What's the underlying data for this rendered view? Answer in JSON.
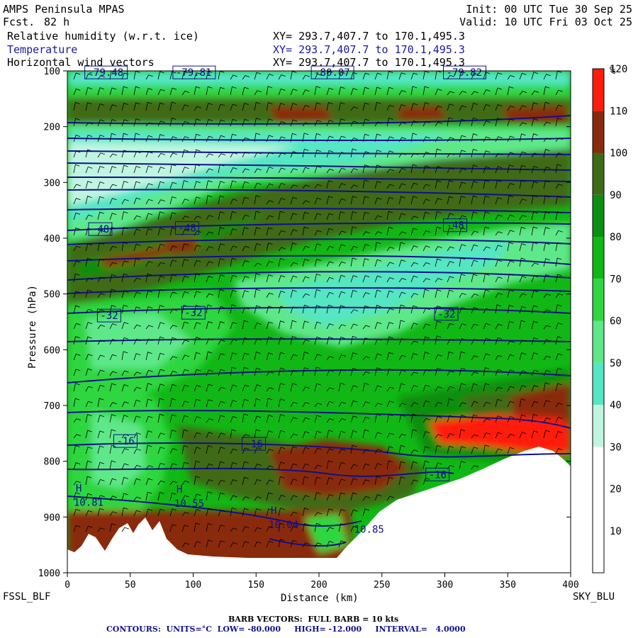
{
  "header": {
    "model": "AMPS Peninsula MPAS",
    "fcst_label": "Fcst.",
    "fcst_value": "82 h",
    "init": "Init: 00 UTC Tue 30 Sep 25",
    "valid": "Valid: 10 UTC Fri 03 Oct 25",
    "fields": [
      {
        "name": "Relative humidity (w.r.t. ice)",
        "xy": "XY= 293.7,407.7 to 170.1,495.3"
      },
      {
        "name": "Temperature",
        "xy": "XY= 293.7,407.7 to 170.1,495.3"
      },
      {
        "name": "Horizontal wind vectors",
        "xy": "XY= 293.7,407.7 to 170.1,495.3"
      }
    ]
  },
  "footer": {
    "left_label": "FSSL_BLF",
    "right_label": "SKY_BLU",
    "barb_note": "BARB VECTORS:  FULL BARB = 10 kts",
    "contour_note": "CONTOURS:  UNITS=°C  LOW= -80.000     HIGH= -12.000     INTERVAL=   4.0000"
  },
  "colors": {
    "contour": "#10108c",
    "terrain": "#ffffff",
    "bins": [
      "#ffffff",
      "#ffffff",
      "#ffffff",
      "#bff5e1",
      "#55e6c3",
      "#5ee88a",
      "#2fd640",
      "#11b815",
      "#0b8f10",
      "#3f6a17",
      "#8a2a0d",
      "#ff1a0a"
    ]
  },
  "chart_data": {
    "type": "heatmap",
    "xlabel": "Distance (km)",
    "ylabel": "Pressure (hPa)",
    "xlim": [
      0,
      400
    ],
    "ylim": [
      1000,
      100
    ],
    "x_ticks": [
      0,
      50,
      100,
      150,
      200,
      250,
      300,
      350,
      400
    ],
    "y_ticks": [
      100,
      200,
      300,
      400,
      500,
      600,
      700,
      800,
      900,
      1000
    ],
    "colorbar": {
      "unit": "%",
      "levels": [
        10,
        20,
        30,
        40,
        50,
        60,
        70,
        80,
        90,
        100,
        110,
        120
      ]
    },
    "contour_labels": [
      {
        "text": "-79.48",
        "x": 15,
        "p": 104
      },
      {
        "text": "-79.81",
        "x": 85,
        "p": 104
      },
      {
        "text": "-80.07",
        "x": 195,
        "p": 104
      },
      {
        "text": "-79.82",
        "x": 300,
        "p": 104
      },
      {
        "text": "-48",
        "x": 18,
        "p": 385
      },
      {
        "text": "-48",
        "x": 87,
        "p": 383
      },
      {
        "text": "-48",
        "x": 300,
        "p": 378
      },
      {
        "text": "-32",
        "x": 25,
        "p": 540
      },
      {
        "text": "-32",
        "x": 92,
        "p": 535
      },
      {
        "text": "-32",
        "x": 293,
        "p": 537
      },
      {
        "text": "-16",
        "x": 38,
        "p": 765
      },
      {
        "text": "-16",
        "x": 140,
        "p": 770
      },
      {
        "text": "-16",
        "x": 286,
        "p": 825
      }
    ],
    "highs": [
      {
        "mark": "H",
        "value": "10.81",
        "x": 5,
        "p": 880
      },
      {
        "mark": "H",
        "value": "10.55",
        "x": 85,
        "p": 882
      },
      {
        "mark": "H",
        "value": "10.04",
        "x": 160,
        "p": 920
      },
      {
        "mark": "",
        "value": "10.85",
        "x": 228,
        "p": 928
      }
    ]
  }
}
